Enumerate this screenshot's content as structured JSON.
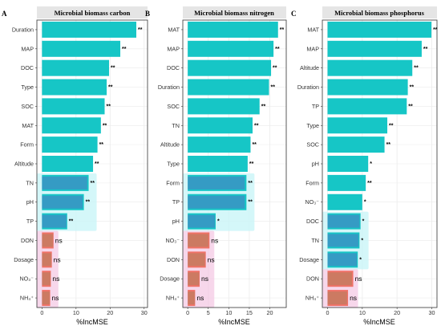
{
  "colors": {
    "significant": "#16c6c6",
    "nonsignificant": "#f07267",
    "strip_background": "#e5e5e5",
    "grid": "#ebebeb",
    "glow_cyan": "#c9f5f7",
    "glow_pink": "#f3c6e3",
    "overlay_dark": "#5a66c2",
    "overlay_olive": "#8a8a5a"
  },
  "chart_data": [
    {
      "type": "bar",
      "orientation": "horizontal",
      "panel_letter": "A",
      "title": "Microbial biomass carbon",
      "xlabel": "%IncMSE",
      "xlim": [
        -1.5,
        31
      ],
      "xticks": [
        0,
        10,
        20,
        30
      ],
      "grid": true,
      "categories": [
        "Duration",
        "MAP",
        "DOC",
        "Type",
        "SOC",
        "MAT",
        "Form",
        "Altitude",
        "TN",
        "pH",
        "TP",
        "DON",
        "Dosage",
        "NO₃⁻",
        "NH₄⁺"
      ],
      "values": [
        27.7,
        23.0,
        19.7,
        19.0,
        18.4,
        17.3,
        16.3,
        15.0,
        13.7,
        12.3,
        7.4,
        3.4,
        2.9,
        2.6,
        2.4
      ],
      "significance": [
        "**",
        "**",
        "**",
        "**",
        "**",
        "**",
        "**",
        "**",
        "**",
        "**",
        "**",
        "ns",
        "ns",
        "ns",
        "ns"
      ]
    },
    {
      "type": "bar",
      "orientation": "horizontal",
      "panel_letter": "B",
      "title": "Microbial biomass nitrogen",
      "xlabel": "%IncMSE",
      "xlim": [
        -1.2,
        24
      ],
      "xticks": [
        0,
        5,
        10,
        15,
        20
      ],
      "grid": true,
      "categories": [
        "MAT",
        "MAP",
        "DOC",
        "Duration",
        "SOC",
        "TN",
        "Altitude",
        "Type",
        "Form",
        "TP",
        "pH",
        "NO₃⁻",
        "DON",
        "Dosage",
        "NH₄⁺"
      ],
      "values": [
        22.0,
        20.9,
        20.3,
        19.8,
        17.5,
        15.8,
        15.3,
        14.6,
        14.3,
        14.3,
        6.8,
        5.3,
        4.4,
        2.9,
        1.8
      ],
      "significance": [
        "**",
        "**",
        "**",
        "**",
        "**",
        "**",
        "**",
        "**",
        "**",
        "**",
        "*",
        "ns",
        "ns",
        "ns",
        "ns"
      ]
    },
    {
      "type": "bar",
      "orientation": "horizontal",
      "panel_letter": "C",
      "title": "Microbial biomass phosphorus",
      "xlabel": "%IncMSE",
      "xlim": [
        -1.5,
        31.5
      ],
      "xticks": [
        0,
        10,
        20,
        30
      ],
      "grid": true,
      "categories": [
        "MAT",
        "MAP",
        "Altitude",
        "Duration",
        "TP",
        "Type",
        "SOC",
        "pH",
        "Form",
        "NO₃⁻",
        "DOC",
        "TN",
        "Dosage",
        "DON",
        "NH₄⁺"
      ],
      "values": [
        29.9,
        27.1,
        24.4,
        23.1,
        22.8,
        17.2,
        16.4,
        11.7,
        11.0,
        10.0,
        9.5,
        9.2,
        8.7,
        7.4,
        5.9
      ],
      "significance": [
        "**",
        "**",
        "**",
        "**",
        "**",
        "**",
        "**",
        "*",
        "**",
        "*",
        "*",
        "*",
        "*",
        "ns",
        "ns"
      ]
    }
  ]
}
